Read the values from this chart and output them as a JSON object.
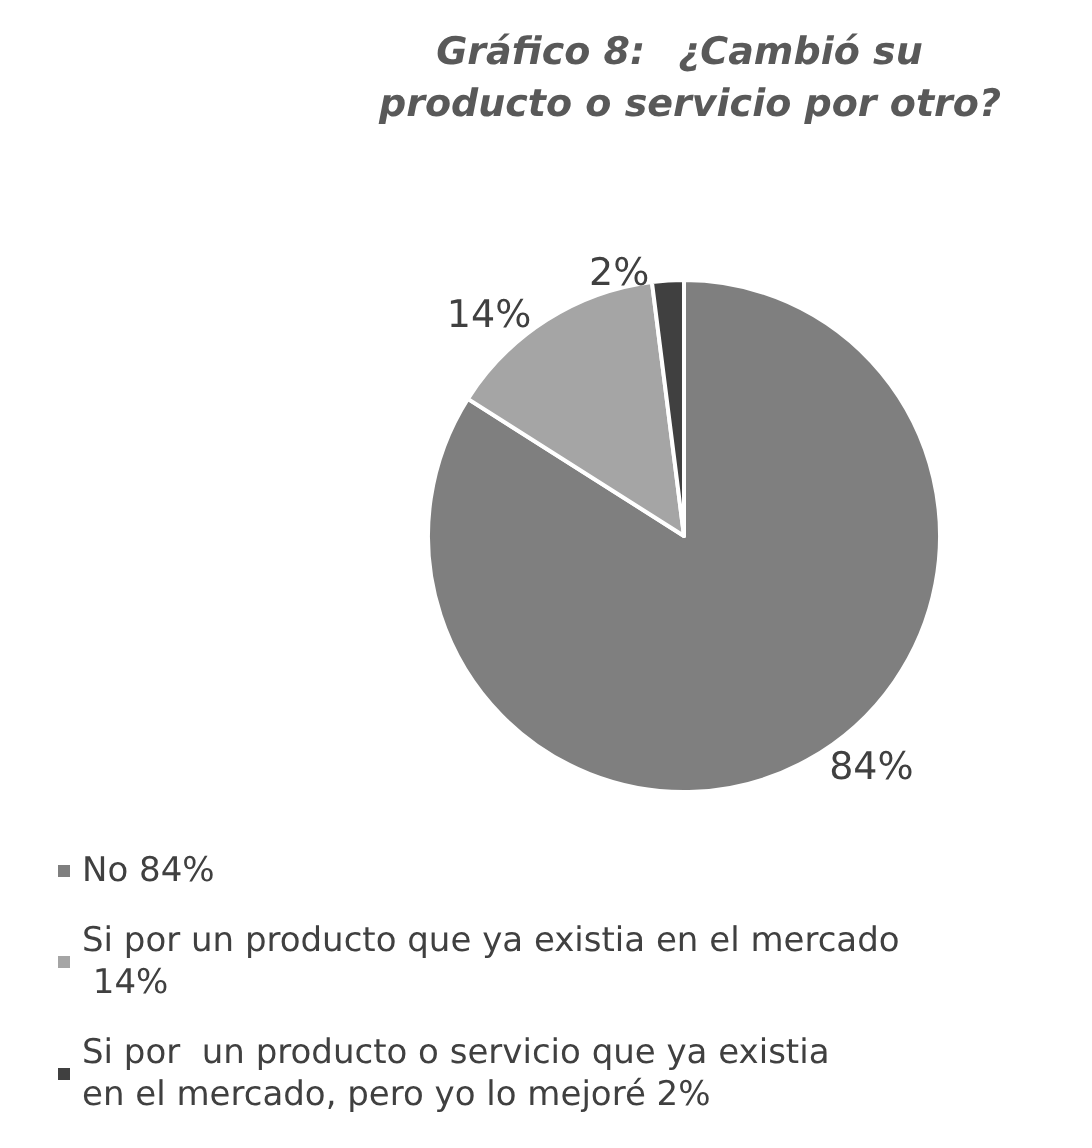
{
  "chart_data": {
    "type": "pie",
    "title": "Gráfico 8: ¿Cambió su producto o servicio por otro?",
    "categories": [
      "No 84%",
      "Si por un producto que ya existia en el mercado 14%",
      "Si por  un producto o servicio que ya existia en el mercado, pero yo lo mejoré 2%"
    ],
    "values": [
      84,
      14,
      2
    ],
    "value_labels": [
      "84%",
      "14%",
      "2%"
    ],
    "colors": [
      "#7f7f7f",
      "#a5a5a5",
      "#404040"
    ],
    "legend": "bottom left"
  }
}
